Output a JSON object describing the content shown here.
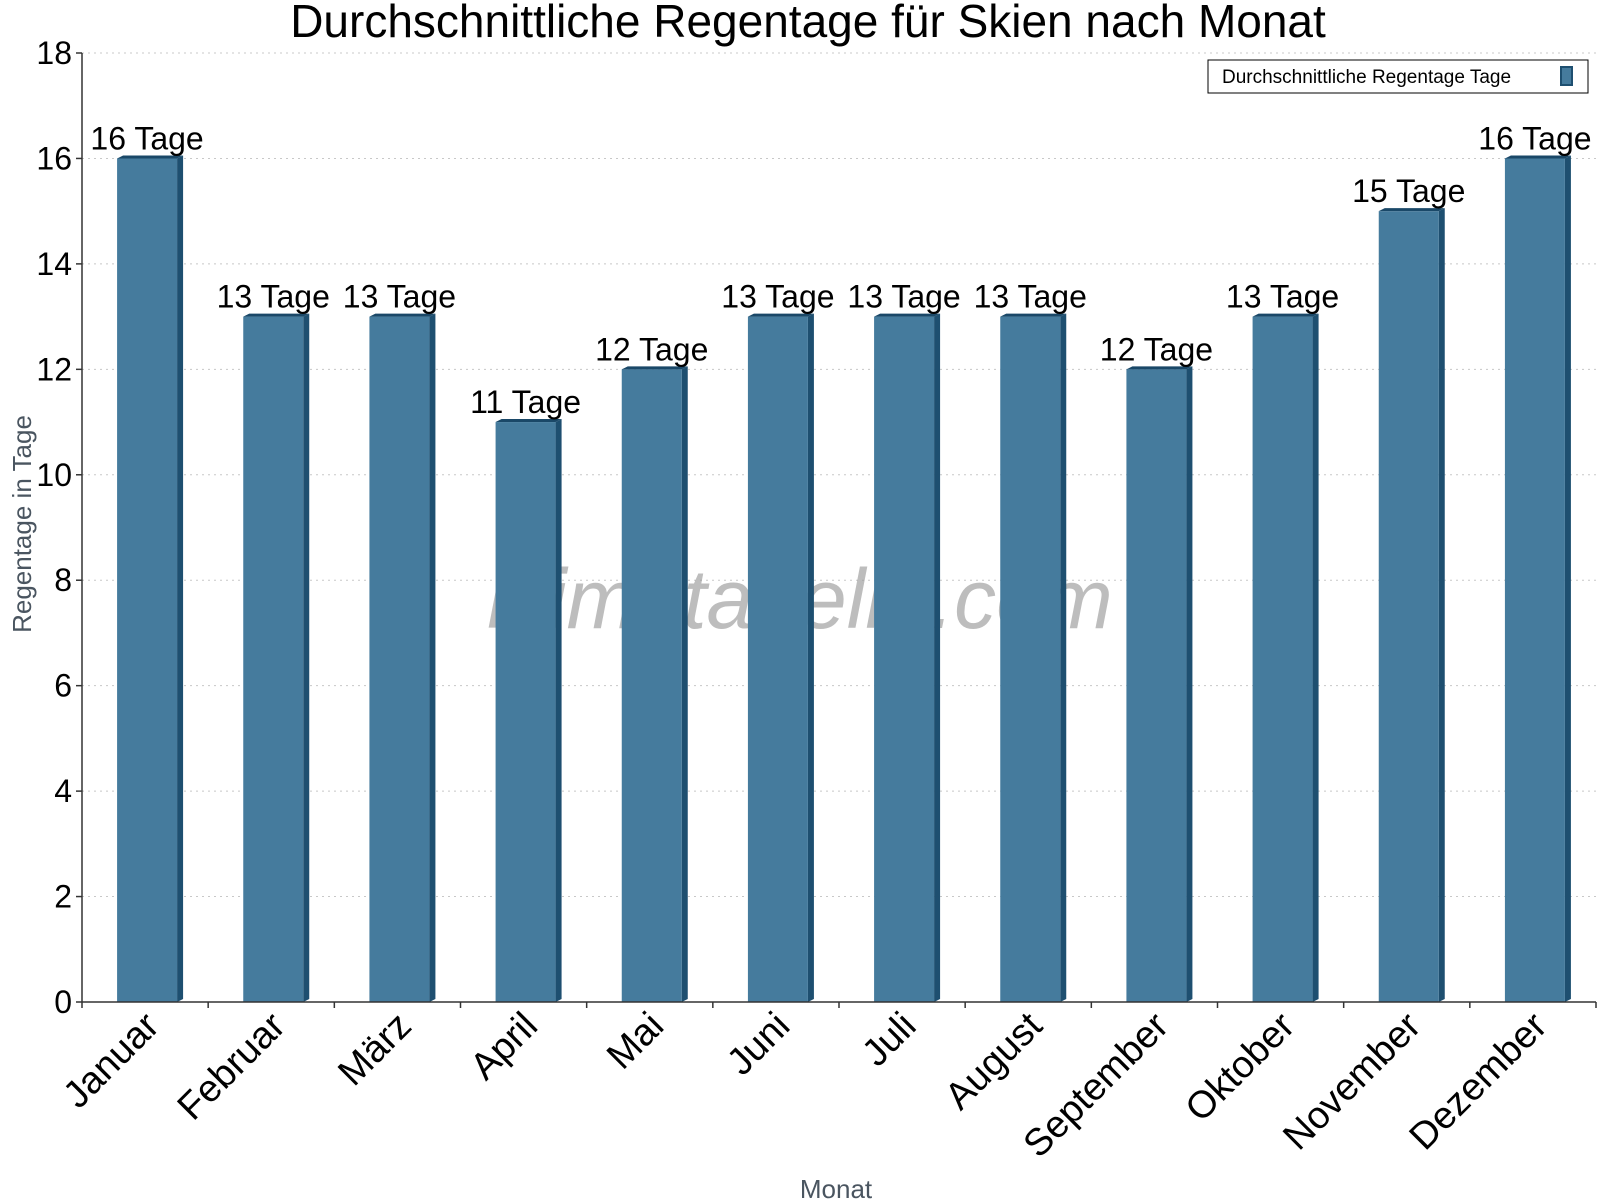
{
  "chart_data": {
    "type": "bar",
    "title": "Durchschnittliche Regentage für Skien nach Monat",
    "xlabel": "Monat",
    "ylabel": "Regentage in Tage",
    "ylim": [
      0,
      18
    ],
    "yticks": [
      0,
      2,
      4,
      6,
      8,
      10,
      12,
      14,
      16,
      18
    ],
    "grid": true,
    "legend_position": "top-right",
    "categories": [
      "Januar",
      "Februar",
      "März",
      "April",
      "Mai",
      "Juni",
      "Juli",
      "August",
      "September",
      "Oktober",
      "November",
      "Dezember"
    ],
    "series": [
      {
        "name": "Durchschnittliche Regentage Tage",
        "values": [
          16,
          13,
          13,
          11,
          12,
          13,
          13,
          13,
          12,
          13,
          15,
          16
        ],
        "data_labels": [
          "16 Tage",
          "13 Tage",
          "13 Tage",
          "11 Tage",
          "12 Tage",
          "13 Tage",
          "13 Tage",
          "13 Tage",
          "12 Tage",
          "13 Tage",
          "15 Tage",
          "16 Tage"
        ],
        "color": "#457b9d",
        "side_color": "#1e4f70",
        "top_color": "#1a4868"
      }
    ],
    "watermark": "klimatabelle.com"
  }
}
